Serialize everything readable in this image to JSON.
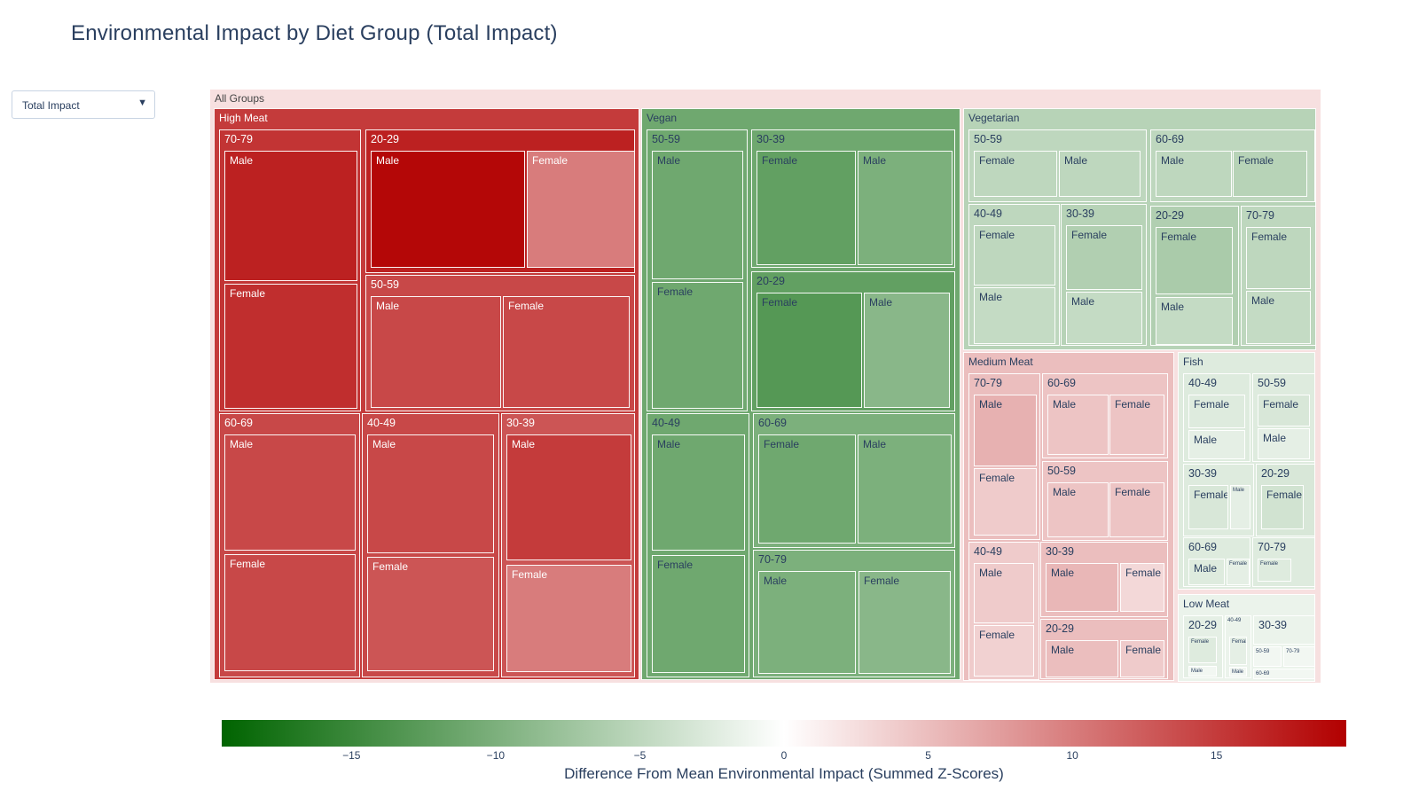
{
  "title": "Environmental Impact by Diet Group (Total Impact)",
  "dropdown": {
    "selected": "Total Impact",
    "arrow": "▼"
  },
  "chart_data": {
    "type": "treemap",
    "root": "All Groups",
    "colorscale": {
      "low": "#006400",
      "mid": "#ffffff",
      "high": "#b20000",
      "range": [
        -19.5,
        19.5
      ]
    },
    "colorbar": {
      "title": "Difference From Mean Environmental Impact (Summed Z-Scores)",
      "ticks": [
        {
          "value": -15,
          "label": "−15"
        },
        {
          "value": -10,
          "label": "−10"
        },
        {
          "value": -5,
          "label": "−5"
        },
        {
          "value": 0,
          "label": "0"
        },
        {
          "value": 5,
          "label": "5"
        },
        {
          "value": 10,
          "label": "10"
        },
        {
          "value": 15,
          "label": "15"
        }
      ]
    },
    "groups": [
      {
        "name": "High Meat",
        "value": 15,
        "ages": [
          {
            "name": "70-79",
            "value": 15.5,
            "sexes": [
              {
                "name": "Male",
                "value": 17
              },
              {
                "name": "Female",
                "value": 16
              }
            ]
          },
          {
            "name": "20-29",
            "value": 17,
            "sexes": [
              {
                "name": "Male",
                "value": 19
              },
              {
                "name": "Female",
                "value": 10
              }
            ]
          },
          {
            "name": "50-59",
            "value": 14,
            "sexes": [
              {
                "name": "Male",
                "value": 14
              },
              {
                "name": "Female",
                "value": 14
              }
            ]
          },
          {
            "name": "60-69",
            "value": 14,
            "sexes": [
              {
                "name": "Male",
                "value": 14
              },
              {
                "name": "Female",
                "value": 14
              }
            ]
          },
          {
            "name": "40-49",
            "value": 14,
            "sexes": [
              {
                "name": "Male",
                "value": 14
              },
              {
                "name": "Female",
                "value": 13
              }
            ]
          },
          {
            "name": "30-39",
            "value": 13,
            "sexes": [
              {
                "name": "Male",
                "value": 15
              },
              {
                "name": "Female",
                "value": 10
              }
            ]
          }
        ]
      },
      {
        "name": "Vegan",
        "value": -11,
        "ages": [
          {
            "name": "50-59",
            "value": -11,
            "sexes": [
              {
                "name": "Male",
                "value": -11
              },
              {
                "name": "Female",
                "value": -11
              }
            ]
          },
          {
            "name": "30-39",
            "value": -11,
            "sexes": [
              {
                "name": "Female",
                "value": -12
              },
              {
                "name": "Male",
                "value": -10
              }
            ]
          },
          {
            "name": "20-29",
            "value": -12,
            "sexes": [
              {
                "name": "Female",
                "value": -13
              },
              {
                "name": "Male",
                "value": -9
              }
            ]
          },
          {
            "name": "40-49",
            "value": -11,
            "sexes": [
              {
                "name": "Male",
                "value": -11
              },
              {
                "name": "Female",
                "value": -11
              }
            ]
          },
          {
            "name": "60-69",
            "value": -10,
            "sexes": [
              {
                "name": "Female",
                "value": -11
              },
              {
                "name": "Male",
                "value": -10
              }
            ]
          },
          {
            "name": "70-79",
            "value": -10,
            "sexes": [
              {
                "name": "Male",
                "value": -10
              },
              {
                "name": "Female",
                "value": -9
              }
            ]
          }
        ]
      },
      {
        "name": "Vegetarian",
        "value": -5.5,
        "ages": [
          {
            "name": "50-59",
            "value": -5,
            "sexes": [
              {
                "name": "Female",
                "value": -5
              },
              {
                "name": "Male",
                "value": -5
              }
            ]
          },
          {
            "name": "60-69",
            "value": -5,
            "sexes": [
              {
                "name": "Male",
                "value": -5
              },
              {
                "name": "Female",
                "value": -5.5
              }
            ]
          },
          {
            "name": "40-49",
            "value": -5,
            "sexes": [
              {
                "name": "Female",
                "value": -5
              },
              {
                "name": "Male",
                "value": -4.5
              }
            ]
          },
          {
            "name": "30-39",
            "value": -5.5,
            "sexes": [
              {
                "name": "Female",
                "value": -6
              },
              {
                "name": "Male",
                "value": -4.5
              }
            ]
          },
          {
            "name": "20-29",
            "value": -6,
            "sexes": [
              {
                "name": "Female",
                "value": -6.5
              },
              {
                "name": "Male",
                "value": -4.5
              }
            ]
          },
          {
            "name": "70-79",
            "value": -5,
            "sexes": [
              {
                "name": "Female",
                "value": -5
              },
              {
                "name": "Male",
                "value": -4.5
              }
            ]
          }
        ]
      },
      {
        "name": "Medium Meat",
        "value": 5,
        "ages": [
          {
            "name": "70-79",
            "value": 5,
            "sexes": [
              {
                "name": "Male",
                "value": 6
              },
              {
                "name": "Female",
                "value": 4
              }
            ]
          },
          {
            "name": "60-69",
            "value": 4.5,
            "sexes": [
              {
                "name": "Male",
                "value": 4.5
              },
              {
                "name": "Female",
                "value": 4.5
              }
            ]
          },
          {
            "name": "50-59",
            "value": 4.5,
            "sexes": [
              {
                "name": "Male",
                "value": 4.5
              },
              {
                "name": "Female",
                "value": 4.5
              }
            ]
          },
          {
            "name": "40-49",
            "value": 4,
            "sexes": [
              {
                "name": "Male",
                "value": 4
              },
              {
                "name": "Female",
                "value": 3.5
              }
            ]
          },
          {
            "name": "30-39",
            "value": 5,
            "sexes": [
              {
                "name": "Male",
                "value": 5.5
              },
              {
                "name": "Female",
                "value": 3
              }
            ]
          },
          {
            "name": "20-29",
            "value": 5,
            "sexes": [
              {
                "name": "Male",
                "value": 5
              },
              {
                "name": "Female",
                "value": 4
              }
            ]
          }
        ]
      },
      {
        "name": "Fish",
        "value": -2.5,
        "ages": [
          {
            "name": "40-49",
            "value": -2.5,
            "sexes": [
              {
                "name": "Female",
                "value": -2.5
              },
              {
                "name": "Male",
                "value": -2
              }
            ]
          },
          {
            "name": "50-59",
            "value": -2.5,
            "sexes": [
              {
                "name": "Female",
                "value": -3
              },
              {
                "name": "Male",
                "value": -2
              }
            ]
          },
          {
            "name": "30-39",
            "value": -2.5,
            "sexes": [
              {
                "name": "Female",
                "value": -3
              },
              {
                "name": "Male",
                "value": -2
              }
            ]
          },
          {
            "name": "20-29",
            "value": -3,
            "sexes": [
              {
                "name": "Female",
                "value": -3.5
              }
            ]
          },
          {
            "name": "60-69",
            "value": -2.5,
            "sexes": [
              {
                "name": "Male",
                "value": -2.5
              },
              {
                "name": "Female",
                "value": -2
              }
            ]
          },
          {
            "name": "70-79",
            "value": -2.5,
            "sexes": [
              {
                "name": "Female",
                "value": -2.5
              }
            ]
          }
        ]
      },
      {
        "name": "Low Meat",
        "value": -1.5,
        "ages": [
          {
            "name": "20-29",
            "value": -2,
            "sexes": [
              {
                "name": "Female",
                "value": -2.5
              },
              {
                "name": "Male",
                "value": -1
              }
            ]
          },
          {
            "name": "40-49",
            "value": -1.5,
            "sexes": [
              {
                "name": "Female",
                "value": -2
              },
              {
                "name": "Male",
                "value": -1
              }
            ]
          },
          {
            "name": "30-39",
            "value": -1.5
          },
          {
            "name": "50-59",
            "value": -1
          },
          {
            "name": "70-79",
            "value": -1
          },
          {
            "name": "60-69",
            "value": -1
          }
        ]
      }
    ]
  }
}
